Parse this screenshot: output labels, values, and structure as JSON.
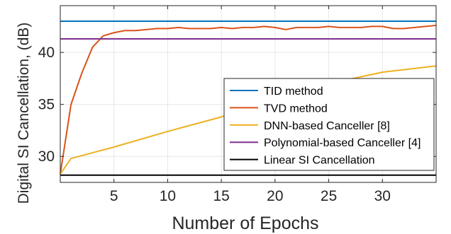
{
  "chart_data": {
    "type": "line",
    "xlabel": "Number of Epochs",
    "ylabel": "Digital SI Cancellation, (dB)",
    "xlim": [
      0,
      35
    ],
    "ylim": [
      27.5,
      44.5
    ],
    "xticks": [
      5,
      10,
      15,
      20,
      25,
      30
    ],
    "yticks": [
      30,
      35,
      40
    ],
    "xtick_labels": [
      "5",
      "10",
      "15",
      "20",
      "25",
      "30"
    ],
    "ytick_labels": [
      "30",
      "35",
      "40"
    ],
    "grid": true,
    "legend_position": "bottom-right",
    "series": [
      {
        "name": "TID method",
        "color": "#0072BD",
        "x": [
          0,
          35
        ],
        "y": [
          43.0,
          43.0
        ]
      },
      {
        "name": "TVD method",
        "color": "#D95319",
        "x": [
          0,
          1,
          2,
          3,
          4,
          5,
          6,
          7,
          8,
          9,
          10,
          11,
          12,
          13,
          14,
          15,
          16,
          17,
          18,
          19,
          20,
          21,
          22,
          23,
          24,
          25,
          26,
          27,
          28,
          29,
          30,
          31,
          32,
          33,
          34,
          35
        ],
        "y": [
          28.3,
          35.0,
          38.0,
          40.5,
          41.6,
          41.9,
          42.1,
          42.1,
          42.2,
          42.3,
          42.3,
          42.4,
          42.3,
          42.3,
          42.3,
          42.4,
          42.3,
          42.4,
          42.4,
          42.5,
          42.4,
          42.2,
          42.4,
          42.4,
          42.4,
          42.5,
          42.4,
          42.4,
          42.4,
          42.5,
          42.5,
          42.3,
          42.3,
          42.4,
          42.5,
          42.6
        ]
      },
      {
        "name": "DNN-based Canceller [8]",
        "color": "#EDB120",
        "x": [
          0,
          1,
          5,
          10,
          15,
          20,
          25,
          30,
          35
        ],
        "y": [
          28.3,
          29.8,
          30.9,
          32.4,
          33.8,
          35.5,
          37.0,
          38.1,
          38.7
        ]
      },
      {
        "name": "Polynomial-based Canceller [4]",
        "color": "#7E2F8E",
        "x": [
          0,
          35
        ],
        "y": [
          41.3,
          41.3
        ]
      },
      {
        "name": "Linear SI Cancellation",
        "color": "#000000",
        "x": [
          0,
          35
        ],
        "y": [
          28.2,
          28.2
        ]
      }
    ]
  }
}
